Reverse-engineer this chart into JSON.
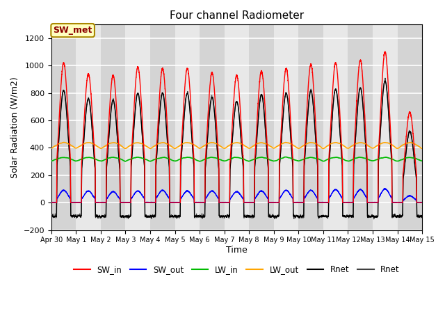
{
  "title": "Four channel Radiometer",
  "xlabel": "Time",
  "ylabel": "Solar Radiation (W/m2)",
  "ylim": [
    -200,
    1300
  ],
  "yticks": [
    -200,
    0,
    200,
    400,
    600,
    800,
    1000,
    1200
  ],
  "n_days": 15,
  "annotation_text": "SW_met",
  "annotation_color": "#8B0000",
  "annotation_bg": "#FFFFC0",
  "plot_bg": "#E8E8E8",
  "grid_color": "#FFFFFF",
  "band_color": "#C8C8C8",
  "colors": {
    "SW_in": "#FF0000",
    "SW_out": "#0000FF",
    "LW_in": "#00BB00",
    "LW_out": "#FFA500",
    "Rnet1": "#000000",
    "Rnet2": "#404040"
  },
  "legend_labels": [
    "SW_in",
    "SW_out",
    "LW_in",
    "LW_out",
    "Rnet",
    "Rnet"
  ],
  "legend_colors": [
    "#FF0000",
    "#0000FF",
    "#00BB00",
    "#FFA500",
    "#000000",
    "#404040"
  ],
  "xtick_labels": [
    "Apr 30",
    "May 1",
    "May 2",
    "May 3",
    "May 4",
    "May 5",
    "May 6",
    "May 7",
    "May 8",
    "May 9",
    "May 10",
    "May 11",
    "May 12",
    "May 13",
    "May 14",
    "May 15"
  ],
  "sw_in_peaks": [
    1020,
    940,
    930,
    990,
    980,
    980,
    950,
    930,
    960,
    980,
    1010,
    1020,
    1040,
    1100,
    660
  ],
  "sw_out_peaks": [
    90,
    85,
    80,
    85,
    90,
    85,
    85,
    80,
    85,
    90,
    90,
    95,
    95,
    100,
    50
  ],
  "lw_in_base": 300,
  "lw_out_base": 390,
  "rnet_peaks": [
    820,
    760,
    750,
    800,
    800,
    800,
    770,
    740,
    790,
    800,
    820,
    830,
    840,
    890,
    520
  ],
  "rnet_night": -100,
  "pts_per_day": 288
}
